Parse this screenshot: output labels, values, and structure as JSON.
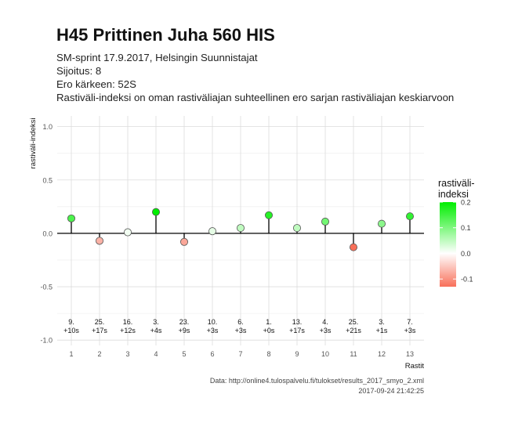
{
  "header": {
    "title": "H45 Prittinen Juha 560 HIS",
    "subtitle_lines": [
      "SM-sprint 17.9.2017, Helsingin Suunnistajat",
      "Sijoitus: 8",
      "Ero kärkeen: 52S",
      "Rastiväli-indeksi on oman rastiväliajan suhteellinen ero sarjan rastiväliajan keskiarvoon"
    ]
  },
  "caption": {
    "source": "Data: http://online4.tulospalvelu.fi/tulokset/results_2017_smyo_2.xml",
    "timestamp": "2017-09-24 21:42:25"
  },
  "chart_data": {
    "type": "scatter",
    "title": "H45 Prittinen Juha 560 HIS",
    "xlabel": "Rastit",
    "ylabel": "rastiväli-indeksi",
    "x": [
      1,
      2,
      3,
      4,
      5,
      6,
      7,
      8,
      9,
      10,
      11,
      12,
      13
    ],
    "values": [
      0.14,
      -0.07,
      0.01,
      0.2,
      -0.08,
      0.02,
      0.05,
      0.17,
      0.05,
      0.11,
      -0.13,
      0.09,
      0.16
    ],
    "point_labels": [
      [
        "9.",
        "+10s"
      ],
      [
        "25.",
        "+17s"
      ],
      [
        "16.",
        "+12s"
      ],
      [
        "3.",
        "+4s"
      ],
      [
        "23.",
        "+9s"
      ],
      [
        "10.",
        "+3s"
      ],
      [
        "6.",
        "+3s"
      ],
      [
        "1.",
        "+0s"
      ],
      [
        "13.",
        "+17s"
      ],
      [
        "4.",
        "+3s"
      ],
      [
        "25.",
        "+21s"
      ],
      [
        "3.",
        "+1s"
      ],
      [
        "7.",
        "+3s"
      ]
    ],
    "xlim": [
      0.5,
      13.5
    ],
    "ylim": [
      -1.05,
      1.1
    ],
    "yticks": [
      -1.0,
      -0.5,
      0.0,
      0.5,
      1.0
    ],
    "ytick_labels": [
      "-1.0",
      "-0.5",
      "0.0",
      "0.5",
      "1.0"
    ],
    "grid": true,
    "legend": {
      "title_lines": [
        "rastiväli-",
        "indeksi"
      ],
      "placement": "right",
      "ticks": [
        0.2,
        0.1,
        0.0,
        -0.1
      ],
      "tick_labels": [
        "0.2",
        "0.1",
        "0.0",
        "-0.1"
      ],
      "range": [
        -0.13,
        0.2
      ],
      "colors": {
        "high": "#00ee00",
        "mid": "#ffffff",
        "low": "#f8705a"
      }
    }
  }
}
